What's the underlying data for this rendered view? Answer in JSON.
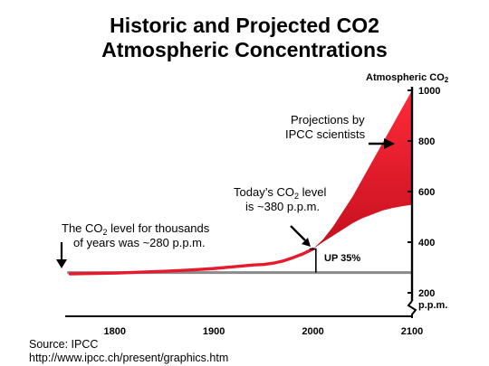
{
  "chart_data": {
    "type": "area",
    "title": [
      "Historic and Projected CO2",
      "Atmospheric Concentrations"
    ],
    "ylabel": "Atmospheric CO",
    "ylabel_subscript": "2",
    "y_unit": "p.p.m.",
    "xlim": [
      1750,
      2100
    ],
    "ylim": [
      200,
      1000
    ],
    "x_ticks": [
      "1800",
      "1900",
      "2000",
      "2100"
    ],
    "y_ticks": [
      {
        "value": 1000,
        "label": "1000"
      },
      {
        "value": 800,
        "label": "800"
      },
      {
        "value": 600,
        "label": "600"
      },
      {
        "value": 400,
        "label": "400"
      },
      {
        "value": 200,
        "label": "200"
      }
    ],
    "baseline": {
      "value": 280
    },
    "historic": {
      "x": [
        1755,
        1800,
        1850,
        1880,
        1900,
        1920,
        1940,
        1950,
        1960,
        1970,
        1980,
        1990,
        2000
      ],
      "y": [
        275,
        278,
        285,
        291,
        296,
        303,
        310,
        312,
        317,
        326,
        339,
        354,
        373
      ]
    },
    "projection": {
      "x": [
        2000,
        2010,
        2020,
        2030,
        2040,
        2050,
        2060,
        2070,
        2080,
        2090,
        2100
      ],
      "upper": [
        373,
        410,
        460,
        520,
        580,
        650,
        720,
        790,
        860,
        930,
        1000
      ],
      "lower": [
        373,
        400,
        425,
        450,
        475,
        495,
        510,
        525,
        535,
        542,
        548
      ]
    },
    "annotations": {
      "historic_label": [
        "The CO",
        "2",
        " level for thousands",
        "of years was ~280 p.p.m."
      ],
      "today_label": [
        "Today’s CO",
        "2",
        " level",
        "is ~380 p.p.m."
      ],
      "projection_label": [
        "Projections by",
        "IPCC scientists"
      ],
      "increase_label": "UP 35%"
    },
    "source": [
      "Source: IPCC",
      "http://www.ipcc.ch/present/graphics.htm"
    ],
    "colors": {
      "fill": "#e8192c",
      "fill_dark": "#c4121f",
      "baseline": "#8a8a8a",
      "axis": "#000000"
    }
  }
}
